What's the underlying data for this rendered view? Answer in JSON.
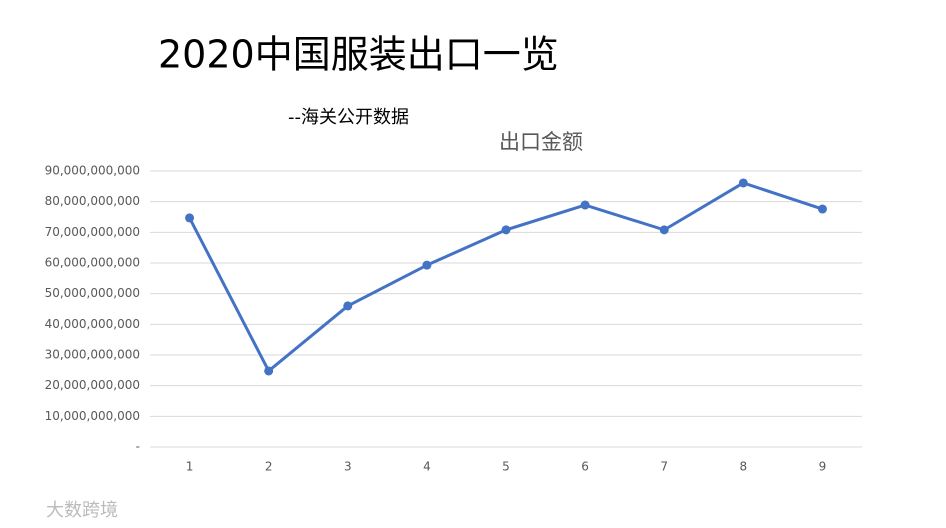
{
  "chart_data": {
    "type": "line",
    "title": "2020中国服装出口一览",
    "subtitle": "--海关公开数据",
    "chart_title": "出口金额",
    "watermark": "大数跨境",
    "categories": [
      "1",
      "2",
      "3",
      "4",
      "5",
      "6",
      "7",
      "8",
      "9"
    ],
    "values": [
      74700000000,
      24800000000,
      46000000000,
      59300000000,
      70800000000,
      78900000000,
      70800000000,
      86100000000,
      77600000000
    ],
    "color": "#4472c4",
    "ylim": [
      0,
      90000000000
    ],
    "yticks": [
      {
        "value": 0,
        "label": "-"
      },
      {
        "value": 10000000000,
        "label": "10,000,000,000"
      },
      {
        "value": 20000000000,
        "label": "20,000,000,000"
      },
      {
        "value": 30000000000,
        "label": "30,000,000,000"
      },
      {
        "value": 40000000000,
        "label": "40,000,000,000"
      },
      {
        "value": 50000000000,
        "label": "50,000,000,000"
      },
      {
        "value": 60000000000,
        "label": "60,000,000,000"
      },
      {
        "value": 70000000000,
        "label": "70,000,000,000"
      },
      {
        "value": 80000000000,
        "label": "80,000,000,000"
      },
      {
        "value": 90000000000,
        "label": "90,000,000,000"
      }
    ],
    "grid": true
  }
}
